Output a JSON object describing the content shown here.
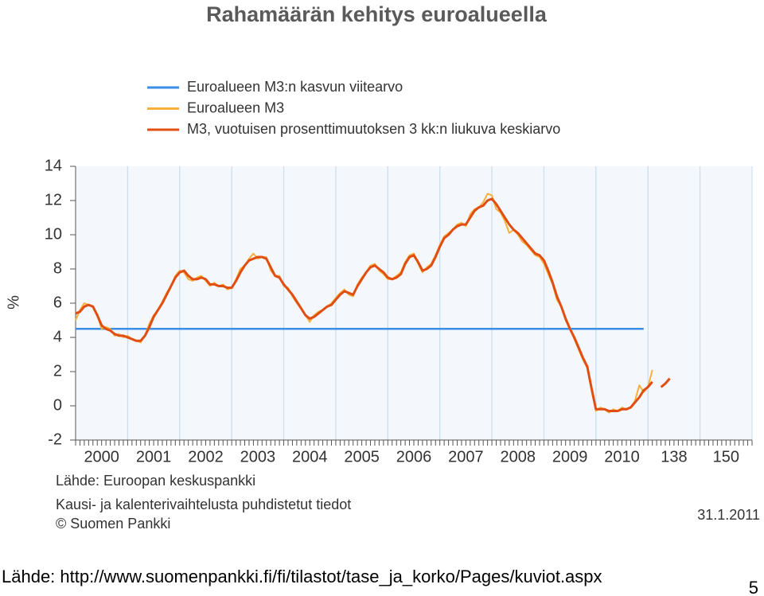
{
  "chart_data": {
    "type": "line",
    "title": "Rahamäärän kehitys euroalueella",
    "y_label": "%",
    "source": "Lähde: Euroopan keskuspankki",
    "note": "Kausi- ja kalenterivaihtelusta puhdistetut tiedot",
    "copyright": "© Suomen Pankki",
    "date": "31.1.2011",
    "xlim": [
      0,
      156
    ],
    "xticks": [
      {
        "value": 6,
        "label": "2000"
      },
      {
        "value": 18,
        "label": "2001"
      },
      {
        "value": 30,
        "label": "2002"
      },
      {
        "value": 42,
        "label": "2003"
      },
      {
        "value": 54,
        "label": "2004"
      },
      {
        "value": 66,
        "label": "2005"
      },
      {
        "value": 78,
        "label": "2006"
      },
      {
        "value": 90,
        "label": "2007"
      },
      {
        "value": 102,
        "label": "2008"
      },
      {
        "value": 114,
        "label": "2009"
      },
      {
        "value": 126,
        "label": "2010"
      },
      138,
      150
    ],
    "ylim": [
      -2,
      14
    ],
    "yticks": [
      -2,
      0,
      2,
      4,
      6,
      8,
      10,
      12,
      14
    ],
    "grid": true,
    "x": [
      0,
      1,
      2,
      3,
      4,
      5,
      6,
      7,
      8,
      9,
      10,
      11,
      12,
      13,
      14,
      15,
      16,
      17,
      18,
      19,
      20,
      21,
      22,
      23,
      24,
      25,
      26,
      27,
      28,
      29,
      30,
      31,
      32,
      33,
      34,
      35,
      36,
      37,
      38,
      39,
      40,
      41,
      42,
      43,
      44,
      45,
      46,
      47,
      48,
      49,
      50,
      51,
      52,
      53,
      54,
      55,
      56,
      57,
      58,
      59,
      60,
      61,
      62,
      63,
      64,
      65,
      66,
      67,
      68,
      69,
      70,
      71,
      72,
      73,
      74,
      75,
      76,
      77,
      78,
      79,
      80,
      81,
      82,
      83,
      84,
      85,
      86,
      87,
      88,
      89,
      90,
      91,
      92,
      93,
      94,
      95,
      96,
      97,
      98,
      99,
      100,
      101,
      102,
      103,
      104,
      105,
      106,
      107,
      108,
      109,
      110,
      111,
      112,
      113,
      114,
      115,
      116,
      117,
      118,
      119,
      120,
      121,
      122,
      123,
      124,
      125,
      126,
      127,
      128,
      129,
      130,
      131,
      132,
      133,
      134,
      135,
      136,
      137
    ],
    "series": [
      {
        "name": "Euroalueen M3:n kasvun viitearvo",
        "color": "#3a8ee6",
        "values": [
          4.5,
          4.5,
          4.5,
          4.5,
          4.5,
          4.5,
          4.5,
          4.5,
          4.5,
          4.5,
          4.5,
          4.5,
          4.5,
          4.5,
          4.5,
          4.5,
          4.5,
          4.5,
          4.5,
          4.5,
          4.5,
          4.5,
          4.5,
          4.5,
          4.5,
          4.5,
          4.5,
          4.5,
          4.5,
          4.5,
          4.5,
          4.5,
          4.5,
          4.5,
          4.5,
          4.5,
          4.5,
          4.5,
          4.5,
          4.5,
          4.5,
          4.5,
          4.5,
          4.5,
          4.5,
          4.5,
          4.5,
          4.5,
          4.5,
          4.5,
          4.5,
          4.5,
          4.5,
          4.5,
          4.5,
          4.5,
          4.5,
          4.5,
          4.5,
          4.5,
          4.5,
          4.5,
          4.5,
          4.5,
          4.5,
          4.5,
          4.5,
          4.5,
          4.5,
          4.5,
          4.5,
          4.5,
          4.5,
          4.5,
          4.5,
          4.5,
          4.5,
          4.5,
          4.5,
          4.5,
          4.5,
          4.5,
          4.5,
          4.5,
          4.5,
          4.5,
          4.5,
          4.5,
          4.5,
          4.5,
          4.5,
          4.5,
          4.5,
          4.5,
          4.5,
          4.5,
          4.5,
          4.5,
          4.5,
          4.5,
          4.5,
          4.5,
          4.5,
          4.5,
          4.5,
          4.5,
          4.5,
          4.5,
          4.5,
          4.5,
          4.5,
          4.5,
          4.5,
          4.5,
          4.5,
          4.5,
          4.5,
          4.5,
          4.5,
          4.5,
          4.5,
          4.5,
          4.5,
          4.5,
          4.5,
          4.5,
          4.5,
          4.5,
          4.5,
          4.5,
          4.5,
          4.5,
          null,
          null,
          null,
          null,
          null,
          null
        ]
      },
      {
        "name": "Euroalueen M3",
        "color": "#f8b03c",
        "values": [
          5.0,
          5.6,
          6.0,
          5.9,
          5.8,
          5.3,
          4.5,
          4.6,
          4.5,
          4.1,
          4.2,
          4.0,
          4.1,
          3.9,
          3.8,
          3.7,
          4.1,
          4.8,
          5.3,
          5.6,
          6.1,
          6.6,
          7.0,
          7.6,
          7.9,
          7.8,
          7.4,
          7.3,
          7.5,
          7.6,
          7.3,
          7.0,
          7.2,
          7.0,
          7.1,
          6.8,
          6.9,
          7.4,
          8.0,
          8.2,
          8.6,
          8.9,
          8.6,
          8.7,
          8.7,
          7.9,
          7.6,
          7.6,
          7.0,
          6.9,
          6.4,
          6.0,
          5.7,
          5.3,
          4.9,
          5.3,
          5.5,
          5.6,
          5.8,
          6.0,
          6.3,
          6.6,
          6.8,
          6.5,
          6.4,
          7.1,
          7.5,
          7.8,
          8.2,
          8.3,
          7.9,
          7.7,
          7.4,
          7.4,
          7.6,
          7.8,
          8.4,
          8.8,
          8.9,
          8.3,
          7.8,
          8.1,
          8.3,
          8.8,
          9.4,
          9.9,
          10.1,
          10.3,
          10.6,
          10.7,
          10.5,
          11.2,
          11.5,
          11.6,
          11.9,
          12.4,
          12.3,
          11.5,
          11.3,
          10.8,
          10.1,
          10.3,
          10.0,
          9.6,
          9.4,
          9.1,
          8.8,
          8.7,
          8.3,
          7.7,
          7.1,
          6.2,
          5.8,
          5.0,
          4.5,
          3.9,
          3.3,
          2.7,
          2.2,
          0.9,
          -0.3,
          -0.1,
          -0.2,
          -0.4,
          -0.2,
          -0.3,
          -0.1,
          -0.2,
          -0.1,
          0.3,
          1.2,
          0.8,
          1.1,
          2.1,
          null,
          null,
          null,
          null
        ]
      },
      {
        "name": "M3, vuotuisen prosenttimuutoksen 3 kk:n liukuva keskiarvo",
        "color": "#e04e12",
        "values": [
          5.4,
          5.5,
          5.8,
          5.9,
          5.8,
          5.3,
          4.7,
          4.5,
          4.4,
          4.2,
          4.1,
          4.1,
          4.0,
          3.9,
          3.8,
          3.8,
          4.1,
          4.6,
          5.2,
          5.6,
          6.0,
          6.5,
          7.0,
          7.5,
          7.8,
          7.9,
          7.6,
          7.4,
          7.4,
          7.5,
          7.4,
          7.1,
          7.1,
          7.0,
          7.0,
          6.9,
          6.9,
          7.3,
          7.8,
          8.2,
          8.5,
          8.6,
          8.7,
          8.7,
          8.6,
          8.1,
          7.6,
          7.5,
          7.1,
          6.8,
          6.5,
          6.1,
          5.7,
          5.3,
          5.1,
          5.2,
          5.4,
          5.6,
          5.8,
          5.9,
          6.2,
          6.5,
          6.7,
          6.6,
          6.5,
          7.0,
          7.4,
          7.8,
          8.1,
          8.2,
          8.0,
          7.8,
          7.5,
          7.4,
          7.5,
          7.7,
          8.3,
          8.7,
          8.8,
          8.4,
          7.9,
          8.0,
          8.2,
          8.7,
          9.3,
          9.8,
          10.0,
          10.3,
          10.5,
          10.6,
          10.6,
          11.0,
          11.4,
          11.6,
          11.7,
          12.0,
          12.1,
          11.8,
          11.4,
          11.0,
          10.6,
          10.3,
          10.1,
          9.8,
          9.5,
          9.2,
          8.9,
          8.8,
          8.5,
          7.9,
          7.2,
          6.4,
          5.8,
          5.1,
          4.5,
          4.0,
          3.4,
          2.8,
          2.3,
          1.0,
          -0.2,
          -0.2,
          -0.2,
          -0.3,
          -0.3,
          -0.3,
          -0.2,
          -0.2,
          -0.1,
          0.2,
          0.5,
          0.9,
          1.1,
          1.4,
          null,
          1.1,
          1.3,
          1.6
        ]
      }
    ]
  },
  "footer": {
    "source": "Lähde: http://www.suomenpankki.fi/fi/tilastot/tase_ja_korko/Pages/kuviot.aspx",
    "page_number": 5
  }
}
